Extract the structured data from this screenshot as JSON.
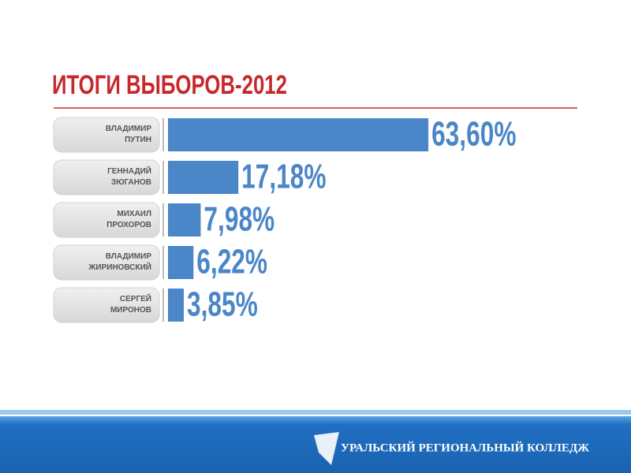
{
  "chart_data": {
    "type": "bar",
    "orientation": "horizontal",
    "title": "ИТОГИ ВЫБОРОВ-2012",
    "categories": [
      "ВЛАДИМИР ПУТИН",
      "ГЕННАДИЙ ЗЮГАНОВ",
      "МИХАИЛ ПРОХОРОВ",
      "ВЛАДИМИР ЖИРИНОВСКИЙ",
      "СЕРГЕЙ МИРОНОВ"
    ],
    "values": [
      63.6,
      17.18,
      7.98,
      6.22,
      3.85
    ],
    "value_labels": [
      "63,60%",
      "17,18%",
      "7,98%",
      "6,22%",
      "3,85%"
    ],
    "color": "#4a86c8"
  },
  "footer": {
    "text": "УРАЛЬСКИЙ РЕГИОНАЛЬНЫЙ КОЛЛЕДЖ"
  }
}
